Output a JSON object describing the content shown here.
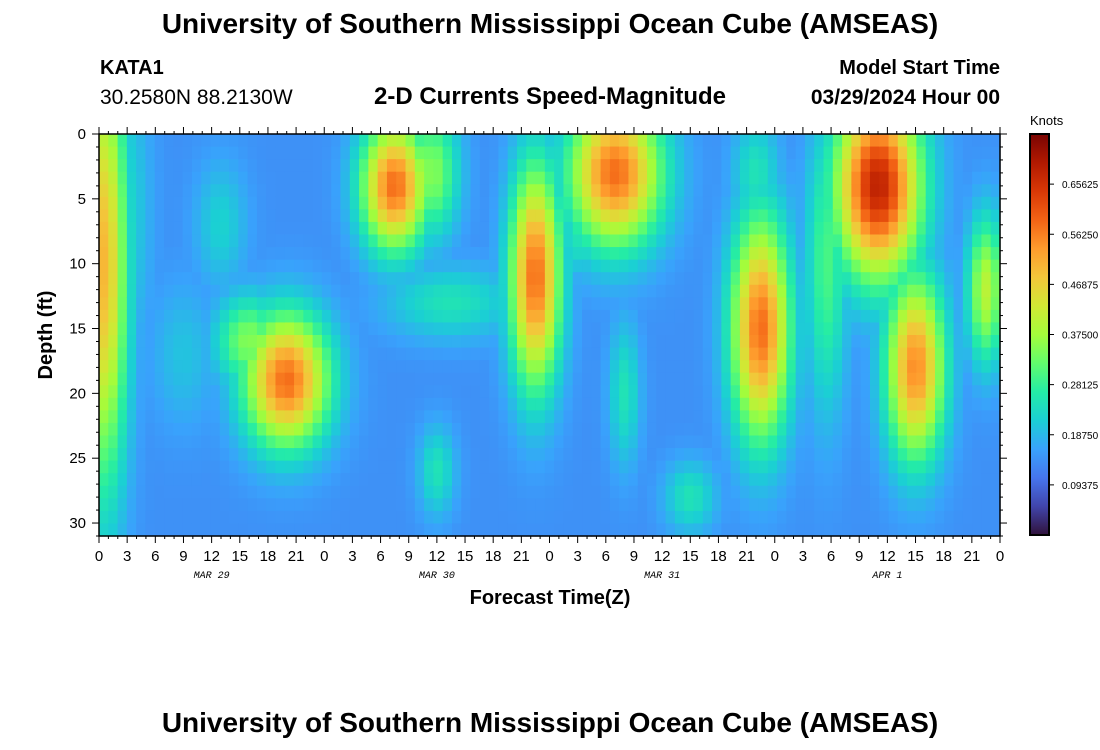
{
  "header": {
    "title": "University of Southern Mississippi Ocean Cube (AMSEAS)",
    "station_id": "KATA1",
    "station_coords": "30.2580N  88.2130W",
    "subtitle": "2-D Currents Speed-Magnitude",
    "model_start_label": "Model Start Time",
    "model_start_value": "03/29/2024 Hour 00"
  },
  "footer": {
    "title": "University of Southern Mississippi Ocean Cube (AMSEAS)"
  },
  "chart_data": {
    "type": "heatmap",
    "title": "2-D Currents Speed-Magnitude",
    "xlabel": "Forecast Time(Z)",
    "ylabel": "Depth (ft)",
    "x_hours_range": [
      0,
      96
    ],
    "y_depth_range": [
      0,
      31
    ],
    "y_inverted": true,
    "x_ticks": [
      "0",
      "3",
      "6",
      "9",
      "12",
      "15",
      "18",
      "21",
      "0",
      "3",
      "6",
      "9",
      "12",
      "15",
      "18",
      "21",
      "0",
      "3",
      "6",
      "9",
      "12",
      "15",
      "18",
      "21",
      "0",
      "3",
      "6",
      "9",
      "12",
      "15",
      "18",
      "21",
      "0"
    ],
    "x_tick_hours": [
      0,
      3,
      6,
      9,
      12,
      15,
      18,
      21,
      24,
      27,
      30,
      33,
      36,
      39,
      42,
      45,
      48,
      51,
      54,
      57,
      60,
      63,
      66,
      69,
      72,
      75,
      78,
      81,
      84,
      87,
      90,
      93,
      96
    ],
    "date_labels": [
      {
        "label": "MAR 29",
        "hour": 12
      },
      {
        "label": "MAR 30",
        "hour": 36
      },
      {
        "label": "MAR 31",
        "hour": 60
      },
      {
        "label": "APR 1",
        "hour": 84
      }
    ],
    "y_ticks": [
      "0",
      "5",
      "10",
      "15",
      "20",
      "25",
      "30"
    ],
    "y_tick_values": [
      0,
      5,
      10,
      15,
      20,
      25,
      30
    ],
    "colorbar": {
      "units": "Knots",
      "min": 0,
      "max": 0.75,
      "tick_labels": [
        "0.09375",
        "0.18750",
        "0.28125",
        "0.37500",
        "0.46875",
        "0.56250",
        "0.65625"
      ],
      "tick_values": [
        0.09375,
        0.1875,
        0.28125,
        0.375,
        0.46875,
        0.5625,
        0.65625
      ],
      "colors": [
        "#30123b",
        "#4145ab",
        "#4675ed",
        "#39a2fc",
        "#1bcfd4",
        "#24eca6",
        "#61fc6c",
        "#a4fc3b",
        "#d1e834",
        "#f3c63a",
        "#fe9b2d",
        "#f36315",
        "#d93806",
        "#b11901",
        "#7a0402"
      ]
    },
    "field_background": 0.14,
    "field_blobs": [
      {
        "t": 0.5,
        "d": 10,
        "st": 1.8,
        "sd": 12,
        "v": 0.5
      },
      {
        "t": 3,
        "d": 6,
        "st": 1.8,
        "sd": 8,
        "v": 0.22
      },
      {
        "t": 9,
        "d": 17,
        "st": 2.5,
        "sd": 4,
        "v": 0.2
      },
      {
        "t": 13,
        "d": 7,
        "st": 2.0,
        "sd": 3.5,
        "v": 0.22
      },
      {
        "t": 20,
        "d": 19,
        "st": 3.2,
        "sd": 3.6,
        "v": 0.58
      },
      {
        "t": 16,
        "d": 16,
        "st": 2.5,
        "sd": 2.5,
        "v": 0.35
      },
      {
        "t": 31.5,
        "d": 4,
        "st": 2.5,
        "sd": 3.5,
        "v": 0.58
      },
      {
        "t": 35.5,
        "d": 3,
        "st": 2.0,
        "sd": 3.5,
        "v": 0.35
      },
      {
        "t": 37.5,
        "d": 13,
        "st": 5.0,
        "sd": 2.0,
        "v": 0.25
      },
      {
        "t": 36,
        "d": 26,
        "st": 1.4,
        "sd": 2.5,
        "v": 0.25
      },
      {
        "t": 46.5,
        "d": 11,
        "st": 1.9,
        "sd": 6,
        "v": 0.58
      },
      {
        "t": 55,
        "d": 3,
        "st": 3.5,
        "sd": 4,
        "v": 0.58
      },
      {
        "t": 51,
        "d": 8,
        "st": 1.5,
        "sd": 2,
        "v": 0.25
      },
      {
        "t": 56,
        "d": 20,
        "st": 1.2,
        "sd": 4,
        "v": 0.25
      },
      {
        "t": 70.5,
        "d": 15,
        "st": 2.2,
        "sd": 6,
        "v": 0.58
      },
      {
        "t": 70,
        "d": 3,
        "st": 1.8,
        "sd": 3,
        "v": 0.25
      },
      {
        "t": 77.5,
        "d": 10,
        "st": 1.6,
        "sd": 8,
        "v": 0.3
      },
      {
        "t": 83,
        "d": 4,
        "st": 3.2,
        "sd": 5,
        "v": 0.68
      },
      {
        "t": 87,
        "d": 18,
        "st": 2.2,
        "sd": 5,
        "v": 0.55
      },
      {
        "t": 94.5,
        "d": 12,
        "st": 1.4,
        "sd": 4,
        "v": 0.4
      },
      {
        "t": 63,
        "d": 28,
        "st": 2.0,
        "sd": 2.0,
        "v": 0.25
      }
    ]
  }
}
